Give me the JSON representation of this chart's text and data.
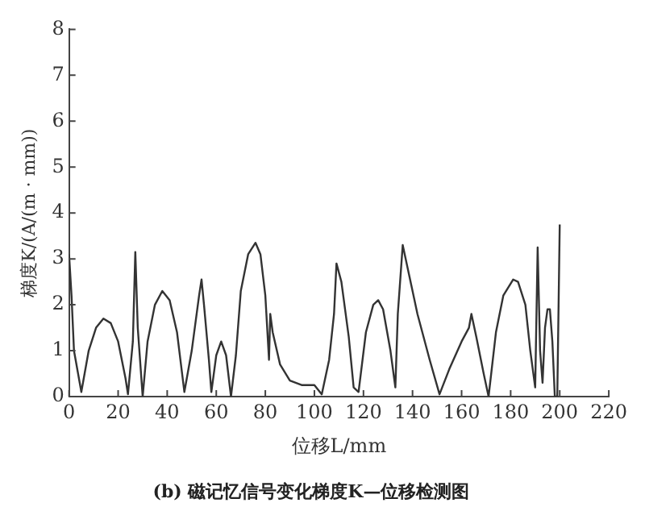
{
  "chart_data": {
    "type": "line",
    "title": "(b) 磁记忆信号变化梯度K—位移检测图",
    "xlabel": "位移L/mm",
    "ylabel": "梯度K/(A/(m · mm))",
    "x": [
      0,
      1,
      2,
      5,
      8,
      11,
      14,
      17,
      20,
      23,
      24,
      26,
      27,
      28,
      30,
      32,
      35,
      38,
      41,
      44,
      47,
      50,
      53,
      54,
      55,
      57,
      58,
      60,
      62,
      64,
      66,
      68,
      70,
      73,
      76,
      78,
      80,
      81.5,
      82,
      83,
      86,
      90,
      95,
      100,
      103,
      106,
      108,
      109,
      111,
      114,
      116,
      118,
      121,
      124,
      126,
      128,
      131,
      133,
      134,
      136,
      138,
      142,
      147,
      151,
      155,
      160,
      163,
      164,
      166,
      169,
      171,
      174,
      177,
      181,
      183,
      186,
      188,
      190,
      191,
      192,
      193,
      194,
      195,
      196,
      197,
      198,
      199,
      200
    ],
    "series": [
      {
        "color": "#333333",
        "values": [
          3.1,
          2.2,
          1.0,
          0.1,
          1.0,
          1.5,
          1.7,
          1.6,
          1.2,
          0.4,
          0.05,
          1.2,
          3.15,
          1.5,
          0,
          1.2,
          2.0,
          2.3,
          2.1,
          1.4,
          0.1,
          1.0,
          2.2,
          2.55,
          2.0,
          0.8,
          0.1,
          0.9,
          1.2,
          0.9,
          0,
          0.9,
          2.3,
          3.1,
          3.35,
          3.1,
          2.2,
          0.8,
          1.8,
          1.4,
          0.7,
          0.35,
          0.25,
          0.25,
          0.05,
          0.8,
          1.8,
          2.9,
          2.5,
          1.3,
          0.2,
          0.1,
          1.4,
          2.0,
          2.1,
          1.9,
          1.0,
          0.2,
          1.8,
          3.3,
          2.8,
          1.8,
          0.8,
          0.05,
          0.6,
          1.2,
          1.5,
          1.8,
          1.3,
          0.5,
          0,
          1.4,
          2.2,
          2.55,
          2.5,
          2.0,
          1.0,
          0.2,
          3.25,
          1.0,
          0.3,
          1.5,
          1.9,
          1.9,
          1.2,
          0,
          0,
          3.75
        ]
      }
    ],
    "xlim": [
      0,
      220
    ],
    "xticks": [
      0,
      20,
      40,
      60,
      80,
      100,
      120,
      140,
      160,
      180,
      200,
      220
    ],
    "ylim": [
      0,
      8
    ],
    "yticks": [
      0,
      1,
      2,
      3,
      4,
      5,
      6,
      7,
      8
    ],
    "grid": false,
    "legend": false,
    "marker": "none",
    "line_style": "solid"
  }
}
